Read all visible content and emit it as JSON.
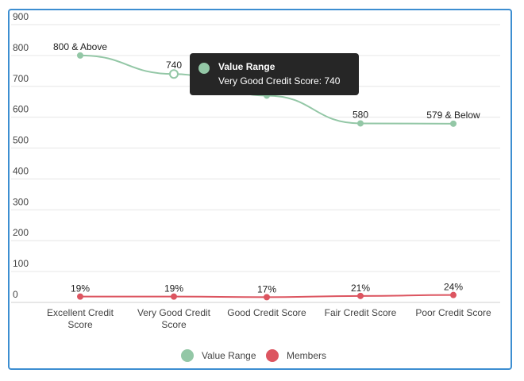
{
  "chart_data": {
    "type": "line",
    "categories": [
      [
        "Excellent Credit",
        "Score"
      ],
      [
        "Very Good Credit",
        "Score"
      ],
      [
        "Good Credit Score"
      ],
      [
        "Fair Credit Score"
      ],
      [
        "Poor Credit Score"
      ]
    ],
    "y_ticks": [
      "0",
      "100",
      "200",
      "300",
      "400",
      "500",
      "600",
      "700",
      "800",
      "900"
    ],
    "ylim": [
      0,
      900
    ],
    "series": [
      {
        "name": "Value Range",
        "color": "#93c7a6",
        "values": [
          800,
          740,
          670,
          580,
          579
        ],
        "labels": [
          "800 & Above",
          "740",
          "",
          "580",
          "579 & Below"
        ]
      },
      {
        "name": "Members",
        "color": "#dc5560",
        "values": [
          19,
          19,
          17,
          21,
          24
        ],
        "labels": [
          "19%",
          "19%",
          "17%",
          "21%",
          "24%"
        ]
      }
    ],
    "legend": [
      "Value Range",
      "Members"
    ],
    "legend_position": "bottom"
  },
  "tooltip": {
    "title": "Value Range",
    "text": "Very Good Credit Score: 740",
    "color": "#93c7a6"
  }
}
